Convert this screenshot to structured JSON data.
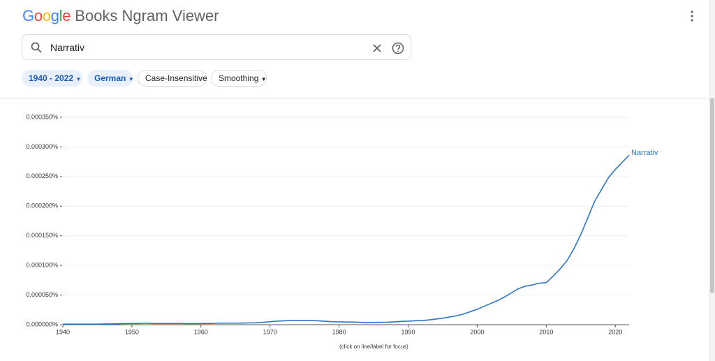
{
  "header": {
    "logo": "Google",
    "title": "Books Ngram Viewer"
  },
  "search": {
    "query": "Narrativ"
  },
  "chips": [
    "1940 - 2022",
    "German",
    "Case-Insensitive",
    "Smoothing"
  ],
  "chart_data": {
    "type": "line",
    "x": [
      1940,
      1941,
      1942,
      1943,
      1944,
      1945,
      1946,
      1947,
      1948,
      1949,
      1950,
      1951,
      1952,
      1953,
      1954,
      1955,
      1956,
      1957,
      1958,
      1959,
      1960,
      1961,
      1962,
      1963,
      1964,
      1965,
      1966,
      1967,
      1968,
      1969,
      1970,
      1971,
      1972,
      1973,
      1974,
      1975,
      1976,
      1977,
      1978,
      1979,
      1980,
      1981,
      1982,
      1983,
      1984,
      1985,
      1986,
      1987,
      1988,
      1989,
      1990,
      1991,
      1992,
      1993,
      1994,
      1995,
      1996,
      1997,
      1998,
      1999,
      2000,
      2001,
      2002,
      2003,
      2004,
      2005,
      2006,
      2007,
      2008,
      2009,
      2010,
      2011,
      2012,
      2013,
      2014,
      2015,
      2016,
      2017,
      2018,
      2019,
      2020,
      2021,
      2022
    ],
    "series": [
      {
        "name": "Narrativ",
        "color": "#2a75c7",
        "values": [
          1e-06,
          1e-06,
          1e-06,
          1e-06,
          1e-06,
          1e-06,
          1.2e-06,
          1.3e-06,
          1.5e-06,
          1.8e-06,
          2e-06,
          2e-06,
          2.5e-06,
          2e-06,
          2e-06,
          2e-06,
          2e-06,
          2e-06,
          1.8e-06,
          1.8e-06,
          2e-06,
          2e-06,
          2.2e-06,
          2.5e-06,
          2.5e-06,
          2.5e-06,
          2.7e-06,
          3e-06,
          3.2e-06,
          4e-06,
          5e-06,
          6e-06,
          6.5e-06,
          7e-06,
          7e-06,
          7e-06,
          7e-06,
          6.5e-06,
          5.8e-06,
          5e-06,
          4.8e-06,
          4.5e-06,
          4.5e-06,
          4e-06,
          3.5e-06,
          3.8e-06,
          4e-06,
          4.2e-06,
          4.8e-06,
          5.5e-06,
          6e-06,
          6.5e-06,
          7e-06,
          8e-06,
          9.5e-06,
          1.1e-05,
          1.3e-05,
          1.5e-05,
          1.8e-05,
          2.2e-05,
          2.6e-05,
          3.1e-05,
          3.6e-05,
          4.1e-05,
          4.7e-05,
          5.4e-05,
          6.1e-05,
          6.5e-05,
          6.7e-05,
          7e-05,
          7.1e-05,
          8.2e-05,
          9.4e-05,
          0.000108,
          0.000128,
          0.000152,
          0.00018,
          0.000208,
          0.000228,
          0.000248,
          0.000262,
          0.000274,
          0.000286
        ]
      }
    ],
    "xlim": [
      1940,
      2022
    ],
    "xticks": [
      1940,
      1950,
      1960,
      1970,
      1980,
      1990,
      2000,
      2010,
      2020
    ],
    "ylim": [
      0,
      0.00035
    ],
    "yticks": [
      {
        "value": 0,
        "label": "0.000000%"
      },
      {
        "value": 5e-05,
        "label": "0.000050%"
      },
      {
        "value": 0.0001,
        "label": "0.000100%"
      },
      {
        "value": 0.00015,
        "label": "0.000150%"
      },
      {
        "value": 0.0002,
        "label": "0.000200%"
      },
      {
        "value": 0.00025,
        "label": "0.000250%"
      },
      {
        "value": 0.0003,
        "label": "0.000300%"
      },
      {
        "value": 0.00035,
        "label": "0.000350%"
      }
    ],
    "grid": true,
    "note": "(click on line/label for focus)"
  }
}
